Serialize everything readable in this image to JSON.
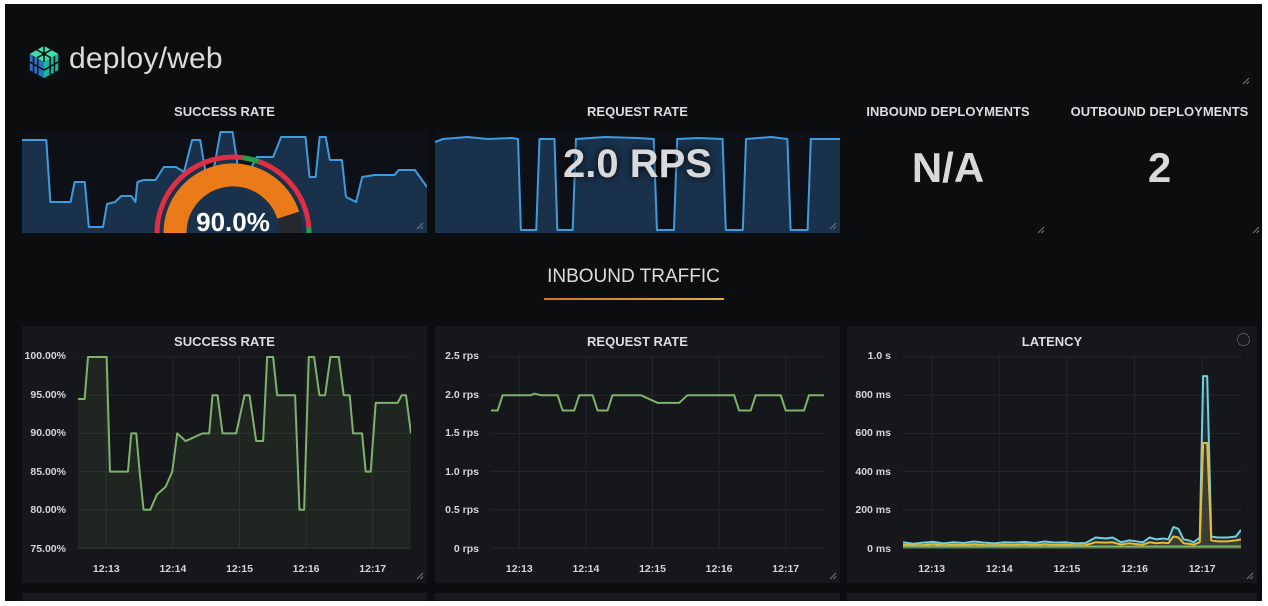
{
  "colors": {
    "dashboard_bg": "#0c0d0f",
    "panel_bg": "#15171a",
    "text": "#d8d9da",
    "spark_blue": "#3e9bdd",
    "series_green": "#7EB26D",
    "series_cyan": "#6ED0E0",
    "series_yellow": "#EAB839",
    "gauge_orange": "#EB7B18",
    "threshold_red": "#E02F44",
    "threshold_green": "#299C46",
    "section_underline_from": "#d9731a",
    "section_underline_to": "#d9b43a"
  },
  "header": {
    "title": "deploy/web",
    "logo": "linkerd-logo"
  },
  "top_row": {
    "success_panel": {
      "title": "SUCCESS RATE",
      "gauge": {
        "value_label": "90.0%",
        "percent": 90
      }
    },
    "request_panel": {
      "title": "REQUEST RATE",
      "value": "2.0 RPS"
    },
    "inbound_stat": {
      "title": "INBOUND DEPLOYMENTS",
      "value": "N/A"
    },
    "outbound_stat": {
      "title": "OUTBOUND DEPLOYMENTS",
      "value": "2"
    }
  },
  "section": {
    "title": "INBOUND TRAFFIC"
  },
  "chart_data": [
    {
      "type": "area",
      "title": "SUCCESS RATE sparkline",
      "grid": false,
      "ylim": [
        0,
        1
      ],
      "series": [
        {
          "name": "success-sparkline",
          "color": "#3e9bdd",
          "width": 2,
          "fill": "rgba(52,118,183,0.33)",
          "x": [
            0,
            0.06,
            0.07,
            0.12,
            0.13,
            0.155,
            0.165,
            0.2,
            0.21,
            0.23,
            0.245,
            0.27,
            0.28,
            0.285,
            0.3,
            0.33,
            0.35,
            0.38,
            0.4,
            0.42,
            0.44,
            0.455,
            0.47,
            0.49,
            0.52,
            0.535,
            0.56,
            0.58,
            0.62,
            0.64,
            0.7,
            0.71,
            0.725,
            0.735,
            0.75,
            0.76,
            0.79,
            0.8,
            0.825,
            0.84,
            0.87,
            0.92,
            0.93,
            0.97,
            1
          ],
          "values": [
            0.92,
            0.92,
            0.3,
            0.3,
            0.5,
            0.5,
            0.05,
            0.05,
            0.28,
            0.3,
            0.36,
            0.36,
            0.3,
            0.5,
            0.52,
            0.52,
            0.65,
            0.65,
            0.6,
            0.92,
            0.92,
            0.55,
            0.55,
            1.0,
            1.0,
            0.6,
            0.6,
            0.75,
            0.75,
            0.95,
            0.95,
            0.55,
            0.55,
            0.95,
            0.95,
            0.72,
            0.72,
            0.35,
            0.3,
            0.55,
            0.57,
            0.57,
            0.62,
            0.62,
            0.45
          ]
        }
      ]
    },
    {
      "type": "area",
      "title": "REQUEST RATE sparkline",
      "grid": false,
      "ylim": [
        0,
        1
      ],
      "series": [
        {
          "name": "request-sparkline",
          "color": "#3e9bdd",
          "width": 2,
          "fill": "rgba(52,118,183,0.33)",
          "x": [
            0,
            0.02,
            0.08,
            0.13,
            0.19,
            0.205,
            0.212,
            0.25,
            0.258,
            0.295,
            0.302,
            0.34,
            0.348,
            0.42,
            0.5,
            0.54,
            0.548,
            0.59,
            0.598,
            0.65,
            0.71,
            0.718,
            0.76,
            0.768,
            0.83,
            0.87,
            0.878,
            0.92,
            0.928,
            1
          ],
          "values": [
            0.9,
            0.93,
            0.95,
            0.93,
            0.94,
            0.93,
            0.02,
            0.02,
            0.93,
            0.93,
            0.02,
            0.02,
            0.93,
            0.95,
            0.94,
            0.93,
            0.02,
            0.02,
            0.93,
            0.94,
            0.93,
            0.02,
            0.02,
            0.93,
            0.95,
            0.93,
            0.02,
            0.02,
            0.93,
            0.93
          ]
        }
      ]
    },
    {
      "type": "area",
      "title": "SUCCESS RATE",
      "grid": true,
      "ylim": [
        75,
        100
      ],
      "yticks": [
        {
          "label": "100.00%",
          "value": 100
        },
        {
          "label": "95.00%",
          "value": 95
        },
        {
          "label": "90.00%",
          "value": 90
        },
        {
          "label": "85.00%",
          "value": 85
        },
        {
          "label": "80.00%",
          "value": 80
        },
        {
          "label": "75.00%",
          "value": 75
        }
      ],
      "xticks": [
        {
          "label": "12:13",
          "pos": 0.085
        },
        {
          "label": "12:14",
          "pos": 0.285
        },
        {
          "label": "12:15",
          "pos": 0.485
        },
        {
          "label": "12:16",
          "pos": 0.685
        },
        {
          "label": "12:17",
          "pos": 0.885
        }
      ],
      "series": [
        {
          "name": "success-rate",
          "color": "#7EB26D",
          "width": 2,
          "fill": "rgba(126,178,109,0.10)",
          "x": [
            0,
            0.02,
            0.03,
            0.086,
            0.096,
            0.15,
            0.16,
            0.175,
            0.185,
            0.197,
            0.217,
            0.237,
            0.263,
            0.283,
            0.298,
            0.323,
            0.374,
            0.394,
            0.404,
            0.419,
            0.434,
            0.475,
            0.5,
            0.515,
            0.535,
            0.556,
            0.568,
            0.586,
            0.598,
            0.652,
            0.665,
            0.679,
            0.693,
            0.709,
            0.725,
            0.742,
            0.758,
            0.783,
            0.798,
            0.816,
            0.826,
            0.853,
            0.864,
            0.879,
            0.894,
            0.96,
            0.972,
            0.985,
            1
          ],
          "values": [
            94.5,
            94.5,
            100,
            100,
            85,
            85,
            90,
            90,
            85,
            80,
            80,
            82,
            83,
            85,
            90,
            89,
            90,
            90,
            95,
            95,
            90,
            90,
            95,
            95,
            89,
            89,
            100,
            100,
            95,
            95,
            80,
            80,
            100,
            100,
            95,
            95,
            100,
            100,
            95,
            95,
            90,
            90,
            85,
            85,
            94,
            94,
            95,
            95,
            90
          ]
        }
      ]
    },
    {
      "type": "line",
      "title": "REQUEST RATE",
      "grid": true,
      "ylim": [
        0,
        2.5
      ],
      "yticks": [
        {
          "label": "2.5 rps",
          "value": 2.5
        },
        {
          "label": "2.0 rps",
          "value": 2.0
        },
        {
          "label": "1.5 rps",
          "value": 1.5
        },
        {
          "label": "1.0 rps",
          "value": 1.0
        },
        {
          "label": "0.5 rps",
          "value": 0.5
        },
        {
          "label": "0 rps",
          "value": 0
        }
      ],
      "xticks": [
        {
          "label": "12:13",
          "pos": 0.085
        },
        {
          "label": "12:14",
          "pos": 0.285
        },
        {
          "label": "12:15",
          "pos": 0.485
        },
        {
          "label": "12:16",
          "pos": 0.685
        },
        {
          "label": "12:17",
          "pos": 0.885
        }
      ],
      "series": [
        {
          "name": "request-rate",
          "color": "#7EB26D",
          "width": 2,
          "fill": null,
          "x": [
            0,
            0.02,
            0.035,
            0.12,
            0.13,
            0.15,
            0.2,
            0.215,
            0.25,
            0.265,
            0.305,
            0.32,
            0.35,
            0.365,
            0.45,
            0.5,
            0.565,
            0.59,
            0.73,
            0.745,
            0.78,
            0.795,
            0.87,
            0.885,
            0.94,
            0.955,
            1
          ],
          "values": [
            1.8,
            1.8,
            2,
            2,
            2.02,
            2,
            2,
            1.8,
            1.8,
            2,
            2,
            1.8,
            1.8,
            2,
            2,
            1.9,
            1.9,
            2,
            2,
            1.8,
            1.8,
            2,
            2,
            1.8,
            1.8,
            2,
            2
          ]
        }
      ]
    },
    {
      "type": "line",
      "title": "LATENCY",
      "grid": true,
      "ylim": [
        0,
        1000
      ],
      "yticks": [
        {
          "label": "1.0 s",
          "value": 1000
        },
        {
          "label": "800 ms",
          "value": 800
        },
        {
          "label": "600 ms",
          "value": 600
        },
        {
          "label": "400 ms",
          "value": 400
        },
        {
          "label": "200 ms",
          "value": 200
        },
        {
          "label": "0 ms",
          "value": 0
        }
      ],
      "xticks": [
        {
          "label": "12:13",
          "pos": 0.085
        },
        {
          "label": "12:14",
          "pos": 0.285
        },
        {
          "label": "12:15",
          "pos": 0.485
        },
        {
          "label": "12:16",
          "pos": 0.685
        },
        {
          "label": "12:17",
          "pos": 0.885
        }
      ],
      "series": [
        {
          "name": "latency-p99",
          "color": "#6ED0E0",
          "width": 2,
          "fill": "rgba(110,208,224,0.12)",
          "x": [
            0,
            0.03,
            0.06,
            0.09,
            0.12,
            0.15,
            0.18,
            0.21,
            0.24,
            0.27,
            0.3,
            0.33,
            0.36,
            0.39,
            0.42,
            0.45,
            0.48,
            0.51,
            0.54,
            0.57,
            0.6,
            0.62,
            0.645,
            0.67,
            0.69,
            0.71,
            0.73,
            0.75,
            0.77,
            0.785,
            0.8,
            0.815,
            0.83,
            0.845,
            0.86,
            0.878,
            0.888,
            0.9,
            0.912,
            0.93,
            0.96,
            0.985,
            1
          ],
          "values": [
            30,
            22,
            28,
            32,
            24,
            30,
            26,
            34,
            28,
            24,
            30,
            28,
            32,
            26,
            34,
            28,
            30,
            24,
            26,
            55,
            50,
            55,
            30,
            40,
            35,
            30,
            55,
            45,
            50,
            45,
            110,
            100,
            45,
            40,
            30,
            55,
            900,
            900,
            60,
            55,
            55,
            60,
            95
          ]
        },
        {
          "name": "latency-p95",
          "color": "#EAB839",
          "width": 2,
          "fill": "rgba(234,184,57,0.12)",
          "x": [
            0,
            0.03,
            0.06,
            0.09,
            0.12,
            0.15,
            0.18,
            0.21,
            0.24,
            0.27,
            0.3,
            0.33,
            0.36,
            0.39,
            0.42,
            0.45,
            0.48,
            0.51,
            0.54,
            0.57,
            0.6,
            0.62,
            0.645,
            0.67,
            0.69,
            0.71,
            0.73,
            0.75,
            0.77,
            0.785,
            0.8,
            0.815,
            0.83,
            0.845,
            0.86,
            0.878,
            0.888,
            0.9,
            0.912,
            0.93,
            0.96,
            0.985,
            1
          ],
          "values": [
            18,
            14,
            16,
            20,
            14,
            18,
            15,
            20,
            16,
            14,
            18,
            16,
            20,
            15,
            20,
            16,
            18,
            14,
            15,
            30,
            28,
            30,
            18,
            25,
            20,
            18,
            30,
            25,
            28,
            25,
            60,
            55,
            25,
            22,
            18,
            30,
            550,
            550,
            40,
            35,
            35,
            40,
            45
          ]
        },
        {
          "name": "latency-p50",
          "color": "#7EB26D",
          "width": 2,
          "fill": "rgba(126,178,109,0.08)",
          "x": [
            0,
            1
          ],
          "values": [
            8,
            8
          ]
        }
      ]
    }
  ]
}
